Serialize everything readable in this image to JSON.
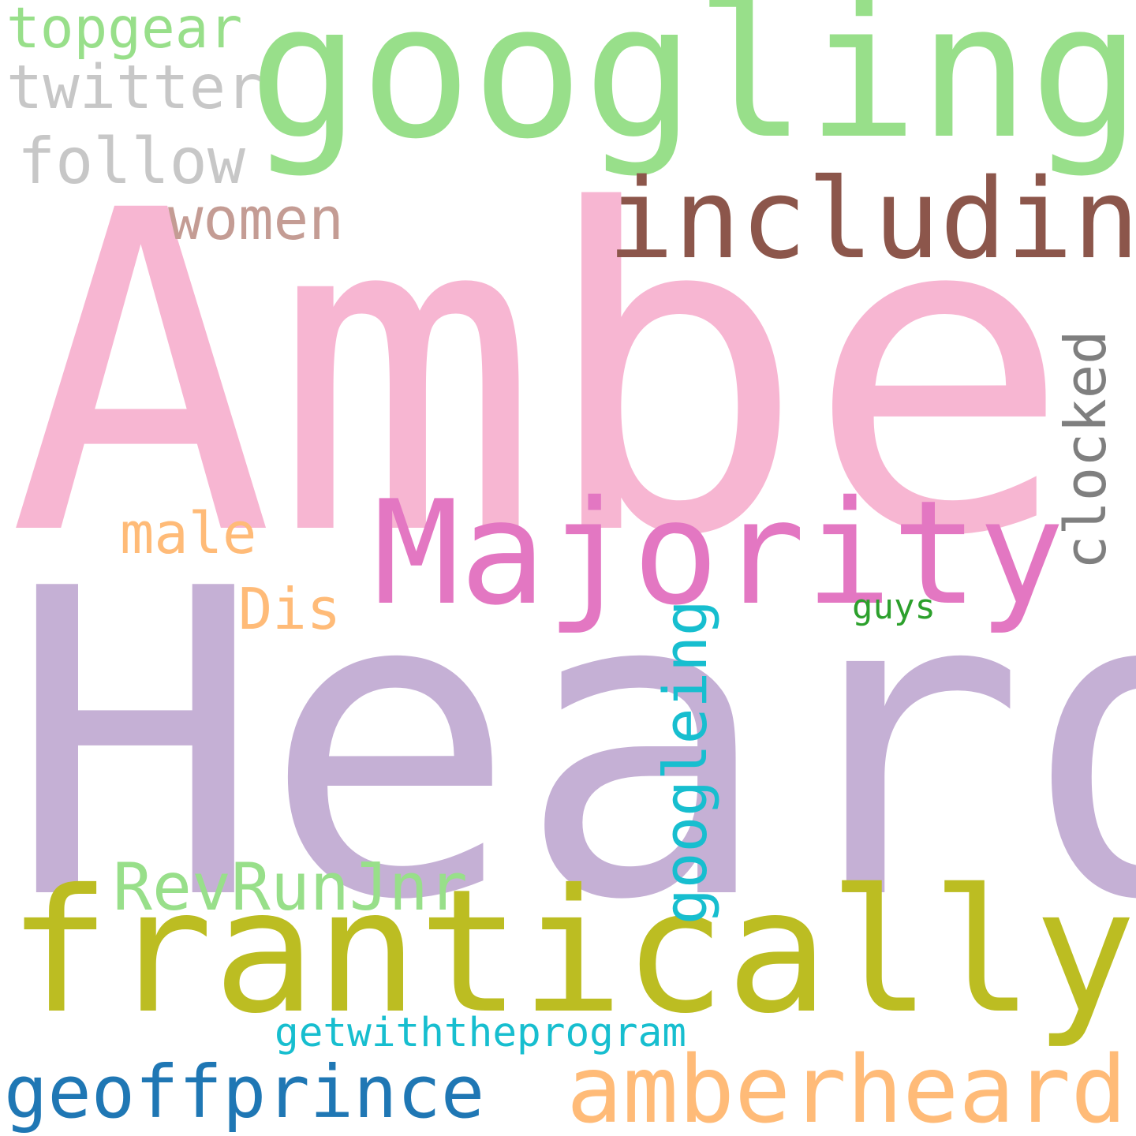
{
  "words": {
    "amber": {
      "text": "Amber",
      "color": "#f7b6d2"
    },
    "heard": {
      "text": "Heard",
      "color": "#c5b0d5"
    },
    "googling": {
      "text": "googling",
      "color": "#98df8a"
    },
    "frantically": {
      "text": "frantically",
      "color": "#bcbd22"
    },
    "majority": {
      "text": "Majority",
      "color": "#e377c2"
    },
    "including": {
      "text": "including",
      "color": "#8c564b"
    },
    "amberheard": {
      "text": "amberheard",
      "color": "#ffbb78"
    },
    "geoffprince": {
      "text": "geoffprince",
      "color": "#1f77b4"
    },
    "revrunjnr": {
      "text": "RevRunJnr",
      "color": "#98df8a"
    },
    "getwith": {
      "text": "getwiththeprogram",
      "color": "#17becf"
    },
    "follow": {
      "text": "follow",
      "color": "#c7c7c7"
    },
    "twitter": {
      "text": "twitter",
      "color": "#c7c7c7"
    },
    "topgear": {
      "text": "topgear",
      "color": "#98df8a"
    },
    "women": {
      "text": "women",
      "color": "#c49c94"
    },
    "male": {
      "text": "male",
      "color": "#ffbb78"
    },
    "dis": {
      "text": "Dis",
      "color": "#ffbb78"
    },
    "guys": {
      "text": "guys",
      "color": "#2ca02c"
    },
    "clocked": {
      "text": "clocked",
      "color": "#7f7f7f"
    },
    "googleing": {
      "text": "googleing",
      "color": "#17becf"
    }
  }
}
